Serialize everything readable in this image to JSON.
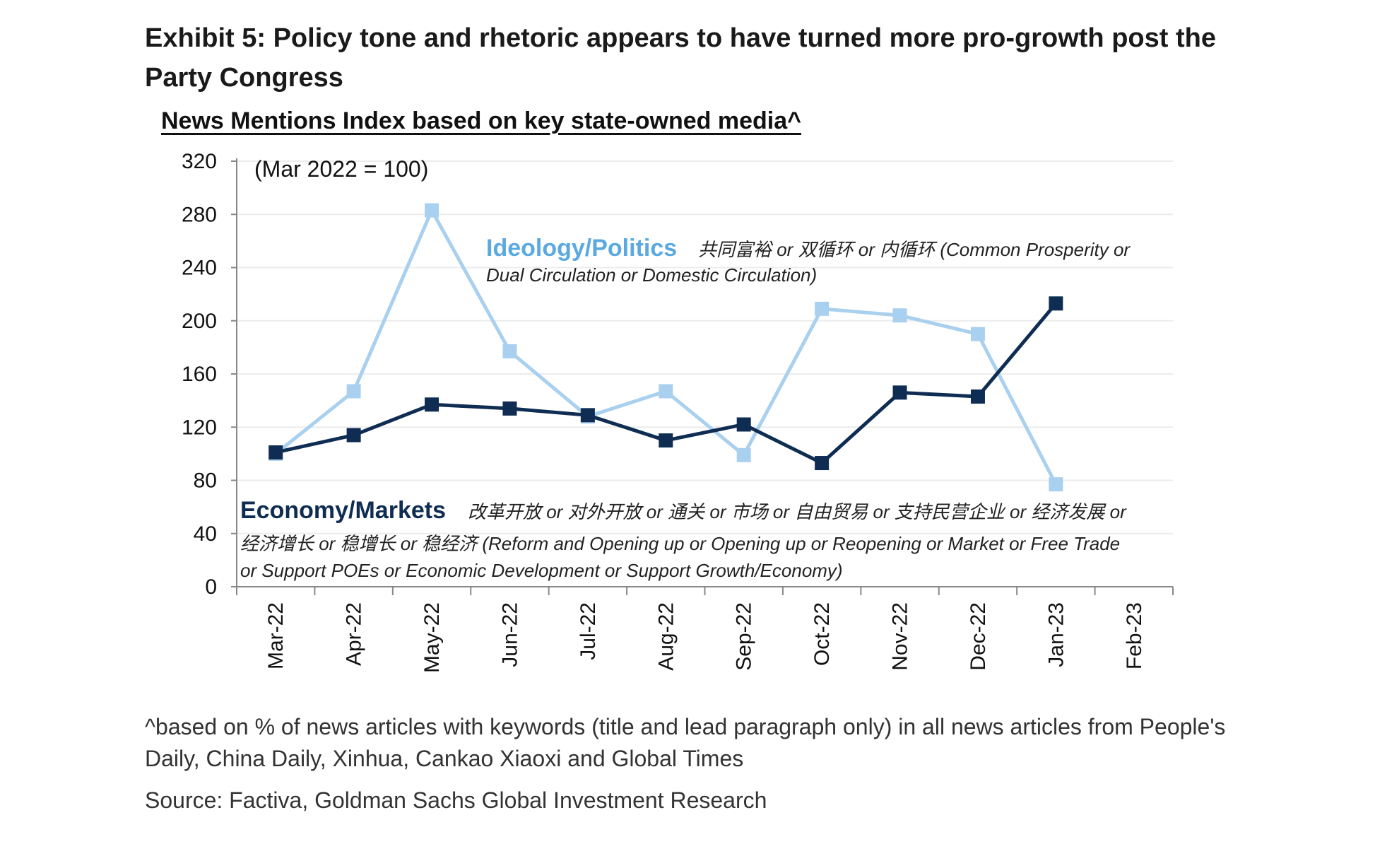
{
  "header": {
    "title": "Exhibit 5: Policy tone and rhetoric appears to have turned more pro-growth post the Party Congress"
  },
  "chart_data": {
    "type": "line",
    "title": "News Mentions Index based on key state-owned media^",
    "annotation": "(Mar 2022 = 100)",
    "categories": [
      "Mar-22",
      "Apr-22",
      "May-22",
      "Jun-22",
      "Jul-22",
      "Aug-22",
      "Sep-22",
      "Oct-22",
      "Nov-22",
      "Dec-22",
      "Jan-23",
      "Feb-23"
    ],
    "ylim": [
      0,
      320
    ],
    "yticks": [
      0,
      40,
      80,
      120,
      160,
      200,
      240,
      280,
      320
    ],
    "grid": true,
    "series": [
      {
        "name": "Ideology/Politics",
        "label_description_line1": "共同富裕 or 双循环 or 内循环 (Common Prosperity or",
        "label_description_line2": "Dual Circulation or Domestic Circulation)",
        "color": "#a9d0ef",
        "values": [
          100,
          147,
          283,
          177,
          128,
          147,
          99,
          209,
          204,
          190,
          77,
          null
        ]
      },
      {
        "name": "Economy/Markets",
        "label_description_line1": "改革开放 or 对外开放 or 通关 or 市场 or 自由贸易 or 支持民营企业 or 经济发展 or",
        "label_description_line2": "经济增长 or 稳增长 or 稳经济 (Reform and Opening up or Opening up or Reopening or Market or Free Trade",
        "label_description_line3": "or Support POEs or Economic Development or Support Growth/Economy)",
        "color": "#0f2d52",
        "values": [
          101,
          114,
          137,
          134,
          129,
          110,
          122,
          93,
          146,
          143,
          213,
          null
        ]
      }
    ]
  },
  "footer": {
    "footnote": "^based on % of news articles with keywords (title and lead paragraph only) in all news articles from People's Daily, China Daily, Xinhua, Cankao Xiaoxi and Global Times",
    "source": "Source: Factiva, Goldman Sachs Global Investment Research"
  }
}
